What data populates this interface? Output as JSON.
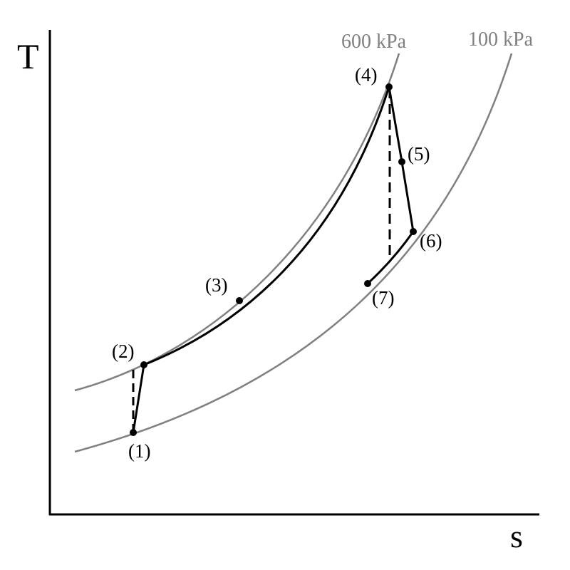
{
  "axes": {
    "y_label": "T",
    "x_label": "s"
  },
  "isobars": [
    {
      "label": "600 kPa"
    },
    {
      "label": "100 kPa"
    }
  ],
  "points": [
    {
      "label": "(1)"
    },
    {
      "label": "(2)"
    },
    {
      "label": "(3)"
    },
    {
      "label": "(4)"
    },
    {
      "label": "(5)"
    },
    {
      "label": "(6)"
    },
    {
      "label": "(7)"
    }
  ]
}
